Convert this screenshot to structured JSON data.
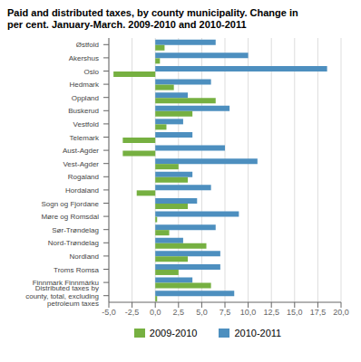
{
  "chart_data": {
    "type": "bar",
    "orientation": "horizontal",
    "title": "Paid and distributed taxes, by county municipality. Change in\nper cent. January-March. 2009-2010 and 2010-2011",
    "categories": [
      "Østfold",
      "Akershus",
      "Oslo",
      "Hedmark",
      "Oppland",
      "Buskerud",
      "Vestfold",
      "Telemark",
      "Aust-Agder",
      "Vest-Agder",
      "Rogaland",
      "Hordaland",
      "Sogn og Fjordane",
      "Møre og Romsdal",
      "Sør-Trøndelag",
      "Nord-Trøndelag",
      "Nordland",
      "Troms Romsa",
      "Finnmark Finnmárku",
      "Distributed taxes by\ncounty, total, excluding\npetroleum taxes"
    ],
    "series": [
      {
        "name": "2009-2010",
        "color": "#76b041",
        "values": [
          1.0,
          0.5,
          -4.5,
          2.0,
          6.5,
          4.0,
          1.2,
          -3.5,
          -3.5,
          2.5,
          3.5,
          -2.0,
          3.5,
          0.2,
          1.5,
          5.5,
          3.5,
          2.5,
          6.0,
          0.2
        ]
      },
      {
        "name": "2010-2011",
        "color": "#4d8fbf",
        "values": [
          6.5,
          10.0,
          18.5,
          6.0,
          3.5,
          8.0,
          3.0,
          4.0,
          7.5,
          11.0,
          4.0,
          6.0,
          4.5,
          9.0,
          6.5,
          3.0,
          7.0,
          7.0,
          4.0,
          8.5
        ]
      }
    ],
    "xlim": [
      -5.0,
      20.0
    ],
    "xticks": [
      {
        "value": -5.0,
        "label": "-5,0"
      },
      {
        "value": -2.5,
        "label": "-2,5"
      },
      {
        "value": 0.0,
        "label": "0,0"
      },
      {
        "value": 2.5,
        "label": "2,5"
      },
      {
        "value": 5.0,
        "label": "5,0"
      },
      {
        "value": 7.5,
        "label": "7,5"
      },
      {
        "value": 10.0,
        "label": "10,0"
      },
      {
        "value": 12.5,
        "label": "12,5"
      },
      {
        "value": 15.0,
        "label": "15,0"
      },
      {
        "value": 17.5,
        "label": "17,5"
      },
      {
        "value": 20.0,
        "label": "20,0"
      }
    ],
    "grid": true
  }
}
